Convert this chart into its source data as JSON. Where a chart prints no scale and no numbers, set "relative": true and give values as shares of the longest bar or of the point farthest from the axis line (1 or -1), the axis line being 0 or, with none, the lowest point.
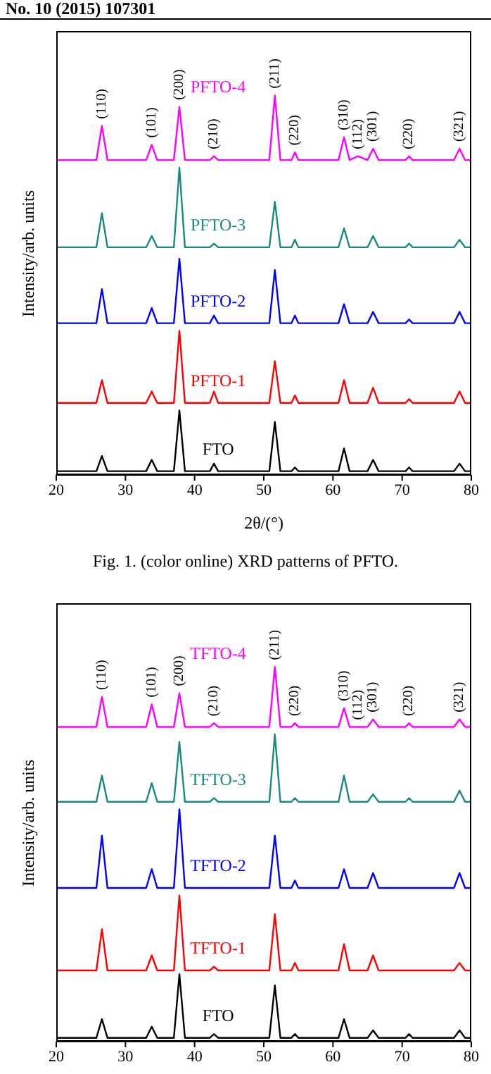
{
  "chart_data": [
    {
      "type": "line",
      "relative": true,
      "xlabel": "2θ/(°)",
      "ylabel": "Intensity/arb. units",
      "xlim": [
        20,
        80
      ],
      "xticks": [
        20,
        30,
        40,
        50,
        60,
        70,
        80
      ],
      "marker": "none",
      "x": [
        20,
        22,
        24,
        25.8,
        26.6,
        27.4,
        30,
        33,
        33.8,
        34.6,
        37,
        37.8,
        38.6,
        40,
        42.2,
        42.8,
        43.4,
        45,
        48,
        50.8,
        51.6,
        52.4,
        54,
        54.5,
        55,
        58,
        60.8,
        61.6,
        62.4,
        63.6,
        65,
        65.8,
        66.6,
        68,
        70.5,
        71,
        71.5,
        74,
        77.5,
        78.3,
        79.1,
        80
      ],
      "series": [
        {
          "name": "FTO",
          "color": "#000000",
          "values": [
            0.01,
            0.01,
            0.01,
            0.01,
            0.05,
            0.01,
            0.01,
            0.01,
            0.04,
            0.01,
            0.01,
            0.17,
            0.01,
            0.01,
            0.01,
            0.03,
            0.01,
            0.01,
            0.01,
            0.01,
            0.14,
            0.01,
            0.01,
            0.02,
            0.01,
            0.01,
            0.01,
            0.07,
            0.01,
            0.01,
            0.01,
            0.04,
            0.01,
            0.01,
            0.01,
            0.02,
            0.01,
            0.01,
            0.01,
            0.03,
            0.01,
            0.01
          ]
        },
        {
          "name": "PFTO-1",
          "color": "#ff0000",
          "values": [
            0.19,
            0.19,
            0.19,
            0.19,
            0.25,
            0.19,
            0.19,
            0.19,
            0.22,
            0.19,
            0.19,
            0.38,
            0.19,
            0.19,
            0.19,
            0.22,
            0.19,
            0.19,
            0.19,
            0.19,
            0.3,
            0.19,
            0.19,
            0.21,
            0.19,
            0.19,
            0.19,
            0.25,
            0.19,
            0.19,
            0.19,
            0.23,
            0.19,
            0.19,
            0.19,
            0.2,
            0.19,
            0.19,
            0.19,
            0.22,
            0.19,
            0.19
          ]
        },
        {
          "name": "PFTO-2",
          "color": "#0000ff",
          "values": [
            0.4,
            0.4,
            0.4,
            0.4,
            0.49,
            0.4,
            0.4,
            0.4,
            0.44,
            0.4,
            0.4,
            0.57,
            0.4,
            0.4,
            0.4,
            0.42,
            0.4,
            0.4,
            0.4,
            0.4,
            0.54,
            0.4,
            0.4,
            0.42,
            0.4,
            0.4,
            0.4,
            0.45,
            0.4,
            0.4,
            0.4,
            0.43,
            0.4,
            0.4,
            0.4,
            0.41,
            0.4,
            0.4,
            0.4,
            0.43,
            0.4,
            0.4
          ]
        },
        {
          "name": "PFTO-3",
          "color": "#1a8a80",
          "values": [
            0.6,
            0.6,
            0.6,
            0.6,
            0.69,
            0.6,
            0.6,
            0.6,
            0.63,
            0.6,
            0.6,
            0.81,
            0.6,
            0.6,
            0.6,
            0.61,
            0.6,
            0.6,
            0.6,
            0.6,
            0.72,
            0.6,
            0.6,
            0.62,
            0.6,
            0.6,
            0.6,
            0.65,
            0.6,
            0.6,
            0.6,
            0.63,
            0.6,
            0.6,
            0.6,
            0.61,
            0.6,
            0.6,
            0.6,
            0.62,
            0.6,
            0.6
          ]
        },
        {
          "name": "PFTO-4",
          "color": "#ff00ff",
          "values": [
            0.83,
            0.83,
            0.83,
            0.83,
            0.92,
            0.83,
            0.83,
            0.83,
            0.87,
            0.83,
            0.83,
            0.97,
            0.83,
            0.83,
            0.83,
            0.84,
            0.83,
            0.83,
            0.83,
            0.83,
            1,
            0.83,
            0.83,
            0.85,
            0.83,
            0.83,
            0.83,
            0.89,
            0.83,
            0.84,
            0.83,
            0.86,
            0.83,
            0.83,
            0.83,
            0.84,
            0.83,
            0.83,
            0.83,
            0.86,
            0.83,
            0.83
          ]
        }
      ],
      "annotations": [
        "No. 10 (2015) 107301",
        "Fig. 1. (color online) XRD patterns of PFTO.",
        {
          "text": "(110)",
          "x": 26.6,
          "y": 0.92
        },
        {
          "text": "(101)",
          "x": 33.8,
          "y": 0.87
        },
        {
          "text": "(200)",
          "x": 37.8,
          "y": 0.97
        },
        {
          "text": "(210)",
          "x": 42.8,
          "y": 0.84
        },
        {
          "text": "(211)",
          "x": 51.6,
          "y": 1
        },
        {
          "text": "(220)",
          "x": 54.5,
          "y": 0.85
        },
        {
          "text": "(310)",
          "x": 61.6,
          "y": 0.89
        },
        {
          "text": "(112)",
          "x": 63.6,
          "y": 0.84
        },
        {
          "text": "(301)",
          "x": 65.8,
          "y": 0.86
        },
        {
          "text": "(220)",
          "x": 71,
          "y": 0.84
        },
        {
          "text": "(321)",
          "x": 78.3,
          "y": 0.86
        }
      ]
    },
    {
      "type": "line",
      "relative": true,
      "ylabel": "Intensity/arb. units",
      "xlim": [
        20,
        80
      ],
      "xticks": [
        20,
        30,
        40,
        50,
        60,
        70,
        80
      ],
      "marker": "none",
      "x": [
        20,
        22,
        24,
        25.8,
        26.6,
        27.4,
        30,
        33,
        33.8,
        34.6,
        37,
        37.8,
        38.6,
        40,
        42.2,
        42.8,
        43.4,
        45,
        48,
        50.8,
        51.6,
        52.4,
        54,
        54.5,
        55,
        58,
        60.8,
        61.6,
        62.4,
        63.6,
        65,
        65.8,
        66.6,
        68,
        70.5,
        71,
        71.5,
        74,
        77.5,
        78.3,
        79.1,
        80
      ],
      "series": [
        {
          "name": "FTO",
          "color": "#000000",
          "values": [
            0.01,
            0.01,
            0.01,
            0.01,
            0.06,
            0.01,
            0.01,
            0.01,
            0.04,
            0.01,
            0.01,
            0.18,
            0.01,
            0.01,
            0.01,
            0.02,
            0.01,
            0.01,
            0.01,
            0.01,
            0.15,
            0.01,
            0.01,
            0.02,
            0.01,
            0.01,
            0.01,
            0.06,
            0.01,
            0.01,
            0.01,
            0.03,
            0.01,
            0.01,
            0.01,
            0.02,
            0.01,
            0.01,
            0.01,
            0.03,
            0.01,
            0.01
          ]
        },
        {
          "name": "TFTO-1",
          "color": "#ff0000",
          "values": [
            0.19,
            0.19,
            0.19,
            0.19,
            0.3,
            0.19,
            0.19,
            0.19,
            0.23,
            0.19,
            0.19,
            0.39,
            0.19,
            0.19,
            0.19,
            0.2,
            0.19,
            0.19,
            0.19,
            0.19,
            0.34,
            0.19,
            0.19,
            0.21,
            0.19,
            0.19,
            0.19,
            0.26,
            0.19,
            0.19,
            0.19,
            0.23,
            0.19,
            0.19,
            0.19,
            0.19,
            0.19,
            0.19,
            0.19,
            0.21,
            0.19,
            0.19
          ]
        },
        {
          "name": "TFTO-2",
          "color": "#0000ff",
          "values": [
            0.41,
            0.41,
            0.41,
            0.41,
            0.55,
            0.41,
            0.41,
            0.41,
            0.46,
            0.41,
            0.41,
            0.62,
            0.41,
            0.41,
            0.41,
            0.41,
            0.41,
            0.41,
            0.41,
            0.41,
            0.55,
            0.41,
            0.41,
            0.43,
            0.41,
            0.41,
            0.41,
            0.46,
            0.41,
            0.41,
            0.41,
            0.45,
            0.41,
            0.41,
            0.41,
            0.41,
            0.41,
            0.41,
            0.41,
            0.45,
            0.41,
            0.41
          ]
        },
        {
          "name": "TFTO-3",
          "color": "#1a8a80",
          "values": [
            0.64,
            0.64,
            0.64,
            0.64,
            0.71,
            0.64,
            0.64,
            0.64,
            0.69,
            0.64,
            0.64,
            0.8,
            0.64,
            0.64,
            0.64,
            0.65,
            0.64,
            0.64,
            0.64,
            0.64,
            0.82,
            0.64,
            0.64,
            0.65,
            0.64,
            0.64,
            0.64,
            0.71,
            0.64,
            0.64,
            0.64,
            0.66,
            0.64,
            0.64,
            0.64,
            0.65,
            0.64,
            0.64,
            0.64,
            0.67,
            0.64,
            0.64
          ]
        },
        {
          "name": "TFTO-4",
          "color": "#ff00ff",
          "values": [
            0.84,
            0.84,
            0.84,
            0.84,
            0.92,
            0.84,
            0.84,
            0.84,
            0.9,
            0.84,
            0.84,
            0.93,
            0.84,
            0.84,
            0.84,
            0.85,
            0.84,
            0.84,
            0.84,
            0.84,
            1,
            0.84,
            0.84,
            0.85,
            0.84,
            0.84,
            0.84,
            0.89,
            0.84,
            0.84,
            0.84,
            0.86,
            0.84,
            0.84,
            0.84,
            0.85,
            0.84,
            0.84,
            0.84,
            0.86,
            0.84,
            0.84
          ]
        }
      ],
      "annotations": [
        {
          "text": "(110)",
          "x": 26.6,
          "y": 0.92
        },
        {
          "text": "(101)",
          "x": 33.8,
          "y": 0.9
        },
        {
          "text": "(200)",
          "x": 37.8,
          "y": 0.93
        },
        {
          "text": "(210)",
          "x": 42.8,
          "y": 0.85
        },
        {
          "text": "(211)",
          "x": 51.6,
          "y": 1
        },
        {
          "text": "(220)",
          "x": 54.5,
          "y": 0.85
        },
        {
          "text": "(310)",
          "x": 61.6,
          "y": 0.89
        },
        {
          "text": "(112)",
          "x": 63.6,
          "y": 0.84
        },
        {
          "text": "(301)",
          "x": 65.8,
          "y": 0.86
        },
        {
          "text": "(220)",
          "x": 71,
          "y": 0.85
        },
        {
          "text": "(321)",
          "x": 78.3,
          "y": 0.86
        }
      ]
    }
  ]
}
